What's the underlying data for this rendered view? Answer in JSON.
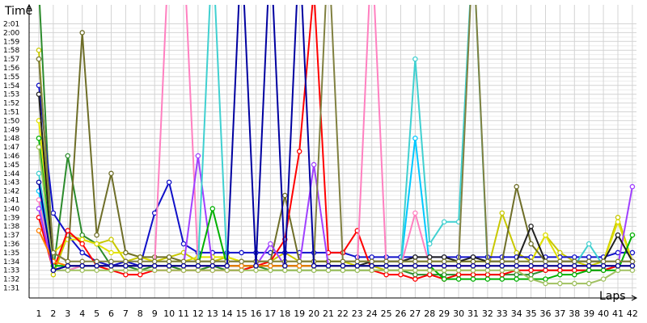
{
  "chart_data": {
    "type": "line",
    "ylabel": "Time",
    "xlabel": "Laps",
    "x_ticks": [
      "1",
      "2",
      "3",
      "4",
      "5",
      "6",
      "7",
      "8",
      "9",
      "10",
      "11",
      "12",
      "13",
      "14",
      "15",
      "16",
      "17",
      "18",
      "19",
      "20",
      "21",
      "22",
      "23",
      "24",
      "25",
      "26",
      "27",
      "28",
      "29",
      "30",
      "31",
      "32",
      "33",
      "34",
      "35",
      "36",
      "37",
      "38",
      "39",
      "40",
      "41",
      "42"
    ],
    "y_ticks": [
      "1:31",
      "1:32",
      "1:33",
      "1:34",
      "1:35",
      "1:36",
      "1:37",
      "1:38",
      "1:39",
      "1:40",
      "1:41",
      "1:42",
      "1:43",
      "1:44",
      "1:45",
      "1:46",
      "1:47",
      "1:48",
      "1:49",
      "1:50",
      "1:51",
      "1:52",
      "1:53",
      "1:54",
      "1:55",
      "1:56",
      "1:57",
      "1:58",
      "1:59",
      "2:00",
      "2:01"
    ],
    "ylim_seconds": [
      90,
      122
    ],
    "grid": true,
    "marker": "hollow-circle",
    "note_values": "lap times in seconds; values above 122 s are drawn off the top of the chart",
    "series": [
      {
        "color": "#c8c800",
        "values": [
          118,
          92.5,
          97,
          96.5,
          96,
          96.5,
          94,
          94.5,
          94,
          94.5,
          95,
          94,
          94,
          94.5,
          94,
          94,
          94,
          95,
          94,
          94,
          94,
          94,
          93.5,
          93.5,
          93,
          93,
          93,
          93,
          93,
          93,
          93,
          93,
          99.5,
          95,
          94,
          97,
          95,
          94,
          93.5,
          94,
          99,
          94
        ]
      },
      {
        "color": "#2c8b2c",
        "values": [
          125,
          93,
          106,
          97,
          96,
          93.5,
          93.5,
          93,
          93.5,
          93.5,
          93,
          93,
          93.5,
          93,
          93,
          93.5,
          93,
          93,
          93,
          93,
          93,
          93,
          93,
          93,
          93,
          93,
          92.5,
          92.5,
          92.5,
          92.5,
          92.5,
          92.5,
          92.5,
          92.5,
          92.5,
          93,
          93,
          93,
          93,
          93,
          93.5,
          93.5
        ]
      },
      {
        "color": "#1010c8",
        "values": [
          114,
          99.5,
          97,
          95,
          94,
          93.5,
          94,
          93.5,
          99.5,
          103,
          96,
          95,
          95,
          95,
          95,
          95,
          95,
          95,
          95,
          95,
          95,
          95,
          94.5,
          94.5,
          94.5,
          94.5,
          94.5,
          94.5,
          94.5,
          94.5,
          94.5,
          94.5,
          94.5,
          94.5,
          94.5,
          94.5,
          94.5,
          94.5,
          94.5,
          94.5,
          95,
          95
        ]
      },
      {
        "color": "#e0e000",
        "values": [
          110,
          95,
          96.5,
          96.5,
          96,
          95,
          95,
          94.5,
          94,
          94,
          94,
          94.5,
          94.5,
          94.5,
          94,
          94,
          94,
          94,
          94,
          94,
          94,
          94,
          94,
          94,
          94,
          94,
          94,
          94,
          94,
          94,
          94,
          94,
          94,
          94,
          94,
          97,
          94,
          94,
          94,
          94,
          98.5,
          94
        ]
      },
      {
        "color": "#6e6e28",
        "values": [
          117,
          95,
          94,
          120,
          97,
          104,
          95,
          94.5,
          94.5,
          94.5,
          94,
          94,
          94,
          94,
          94,
          94,
          94,
          101.5,
          94,
          94,
          94,
          94,
          94,
          94,
          94,
          94,
          94,
          94,
          94,
          94,
          94,
          94,
          94,
          102.5,
          96,
          94,
          94,
          94,
          94,
          94,
          94,
          94
        ]
      },
      {
        "color": "#00c8ff",
        "values": [
          102,
          93,
          93,
          93.5,
          93.5,
          93.5,
          93.5,
          93.5,
          93.5,
          93.5,
          93.5,
          93.5,
          93.5,
          93.5,
          93.5,
          93.5,
          93.5,
          93.5,
          93.5,
          93.5,
          93.5,
          93.5,
          93.5,
          93.5,
          93.5,
          93.5,
          108,
          93.5,
          93.5,
          93.5,
          93.5,
          93.5,
          93.5,
          93.5,
          93.5,
          93.5,
          93.5,
          93.5,
          93.5,
          93.5,
          93.5,
          93.5
        ]
      },
      {
        "color": "#ff0000",
        "values": [
          99,
          93,
          97.5,
          96,
          93.5,
          93,
          92.5,
          92.5,
          93,
          93,
          93,
          93,
          93,
          93,
          93,
          93.5,
          94,
          96.5,
          106.5,
          125,
          95,
          95,
          97.5,
          93,
          92.5,
          92.5,
          92,
          92.5,
          92,
          92.5,
          92.5,
          92.5,
          92.5,
          93,
          93,
          93,
          93,
          93,
          93,
          93,
          93.5,
          93.5
        ]
      },
      {
        "color": "#ff80c0",
        "values": [
          101,
          93,
          93,
          93.5,
          93.5,
          93.5,
          93.5,
          93.5,
          93.5,
          130,
          130,
          93.5,
          93.5,
          93.5,
          93.5,
          93.5,
          93.5,
          93.5,
          93.5,
          93.5,
          93.5,
          93.5,
          93.5,
          130,
          93.5,
          93.5,
          99.5,
          93.5,
          93.5,
          93.5,
          93.5,
          93.5,
          93.5,
          93.5,
          93.5,
          93.5,
          93.5,
          93.5,
          93.5,
          93.5,
          93.5,
          93.5
        ]
      },
      {
        "color": "#a040ff",
        "values": [
          100,
          93,
          93.5,
          93.5,
          93.5,
          93.5,
          93.5,
          93.5,
          93.5,
          93.5,
          93.5,
          106,
          93.5,
          93.5,
          93.5,
          93.5,
          96,
          93.5,
          93.5,
          105,
          93.5,
          93.5,
          93.5,
          93.5,
          93.5,
          93.5,
          93.5,
          93.5,
          93.5,
          93.5,
          93.5,
          93.5,
          93.5,
          93.5,
          93.5,
          93.5,
          93.5,
          93.5,
          93.5,
          93.5,
          93.5,
          102.5
        ]
      },
      {
        "color": "#40d0d0",
        "values": [
          104,
          93.5,
          93.5,
          93.5,
          93.5,
          93.5,
          93.5,
          93.5,
          93.5,
          93.5,
          93.5,
          93.5,
          130,
          93.5,
          93.5,
          93.5,
          93.5,
          93.5,
          93.5,
          93.5,
          93.5,
          93.5,
          93.5,
          93.5,
          93.5,
          93.5,
          117,
          96,
          98.5,
          98.5,
          130,
          93.5,
          93.5,
          93.5,
          93.5,
          93.5,
          93.5,
          93.5,
          96,
          93.5,
          93.5,
          93.5
        ]
      },
      {
        "color": "#00b000",
        "values": [
          108,
          93.5,
          93.5,
          93.5,
          93.5,
          93.5,
          93.5,
          93.5,
          93.5,
          93.5,
          93.5,
          93.5,
          100,
          93.5,
          93.5,
          93.5,
          93.5,
          93.5,
          93.5,
          93.5,
          93.5,
          93.5,
          93.5,
          93.5,
          93.5,
          93.5,
          93.5,
          93.5,
          92,
          92,
          92,
          92,
          92,
          92,
          92,
          92,
          92.5,
          92.5,
          93,
          93,
          93,
          97
        ]
      },
      {
        "color": "#202020",
        "values": [
          113,
          93,
          93.5,
          93.5,
          93.5,
          93.5,
          93.5,
          93.5,
          93.5,
          93.5,
          93.5,
          93.5,
          93.5,
          93.5,
          93.5,
          93.5,
          93.5,
          93.5,
          93.5,
          93.5,
          93.5,
          93.5,
          93.5,
          94,
          94,
          94,
          94.5,
          94.5,
          94.5,
          94,
          94.5,
          94,
          94,
          94,
          98,
          94,
          94,
          94,
          94,
          94,
          97,
          94
        ]
      },
      {
        "color": "#a0c060",
        "values": [
          107,
          93,
          93,
          93,
          93,
          93,
          93,
          93,
          93,
          93,
          93,
          93,
          93,
          93,
          93,
          93,
          93,
          93,
          93,
          93,
          93,
          93,
          93,
          93,
          93,
          93,
          93,
          93,
          93,
          93,
          93,
          93,
          93,
          93,
          92,
          91.5,
          91.5,
          91.5,
          91.5,
          92,
          93,
          93
        ]
      },
      {
        "color": "#ff8000",
        "values": [
          97.5,
          94,
          93.5,
          93.5,
          93.5,
          93.5,
          93.5,
          93.5,
          93.5,
          93.5,
          93.5,
          93.5,
          93.5,
          93.5,
          93.5,
          93.5,
          93.5,
          93.5,
          93.5,
          93.5,
          93.5,
          93.5,
          93.5,
          93.5,
          93.5,
          93.5,
          93.5,
          93.5,
          93.5,
          93.5,
          93.5,
          93.5,
          93.5,
          93.5,
          93.5,
          93.5,
          93.5,
          93.5,
          93.5,
          93.5,
          93.5,
          93.5
        ]
      },
      {
        "color": "#808040",
        "values": [
          117,
          95,
          94,
          94,
          94,
          94,
          94,
          94,
          94,
          94,
          94,
          94,
          94,
          94,
          94,
          94,
          94,
          94,
          94,
          94,
          130,
          94,
          94,
          94,
          94,
          94,
          94,
          94,
          94,
          94,
          130,
          94,
          94,
          94,
          94,
          94,
          94,
          94,
          94,
          94,
          94,
          94
        ]
      },
      {
        "color": "#0000a0",
        "values": [
          103,
          93,
          93.5,
          93.5,
          93.5,
          93.5,
          93.5,
          93.5,
          93.5,
          93.5,
          93.5,
          93.5,
          93.5,
          93.5,
          130,
          93.5,
          130,
          93.5,
          130,
          93.5,
          93.5,
          93.5,
          93.5,
          93.5,
          93.5,
          93.5,
          93.5,
          93.5,
          93.5,
          93.5,
          93.5,
          93.5,
          93.5,
          93.5,
          93.5,
          93.5,
          93.5,
          93.5,
          93.5,
          93.5,
          93.5,
          93.5
        ]
      }
    ]
  }
}
